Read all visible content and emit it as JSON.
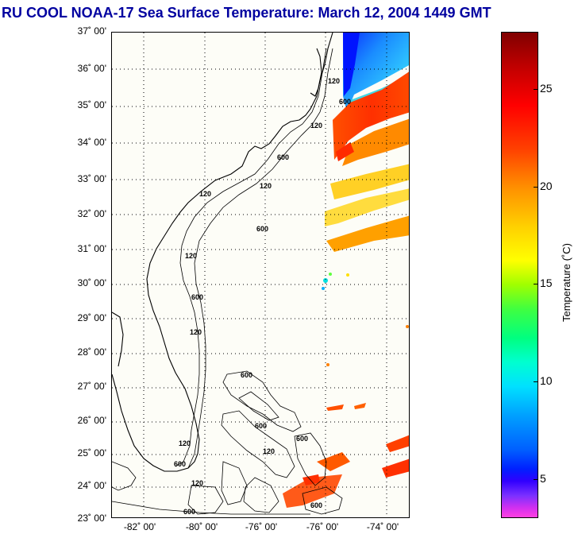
{
  "title": "RU COOL  NOAA-17  Sea Surface Temperature:  March 12, 2004 1449 GMT",
  "map": {
    "lat_labels": [
      "37˚ 00'",
      "36˚ 00'",
      "35˚ 00'",
      "34˚ 00'",
      "33˚ 00'",
      "32˚ 00'",
      "31˚ 00'",
      "30˚ 00'",
      "29˚ 00'",
      "28˚ 00'",
      "27˚ 00'",
      "26˚ 00'",
      "25˚ 00'",
      "24˚ 00'",
      "23˚ 00'"
    ],
    "lon_labels": [
      "-82˚ 00'",
      "-80˚ 00'",
      "-76˚ 00'",
      "-76˚ 00'",
      "-74˚ 00'"
    ],
    "contour_labels": [
      "600",
      "120",
      "120",
      "600",
      "120",
      "120",
      "600",
      "120",
      "600",
      "120",
      "600",
      "600",
      "120",
      "600",
      "120",
      "600",
      "120",
      "600",
      "600"
    ]
  },
  "colorbar": {
    "label": "Temperature (˚C)",
    "ticks": [
      "25",
      "20",
      "15",
      "10",
      "5"
    ],
    "range": [
      3,
      28
    ]
  },
  "colors": {
    "title": "#0000a0",
    "land_sea_background": "#fdfdf7"
  }
}
